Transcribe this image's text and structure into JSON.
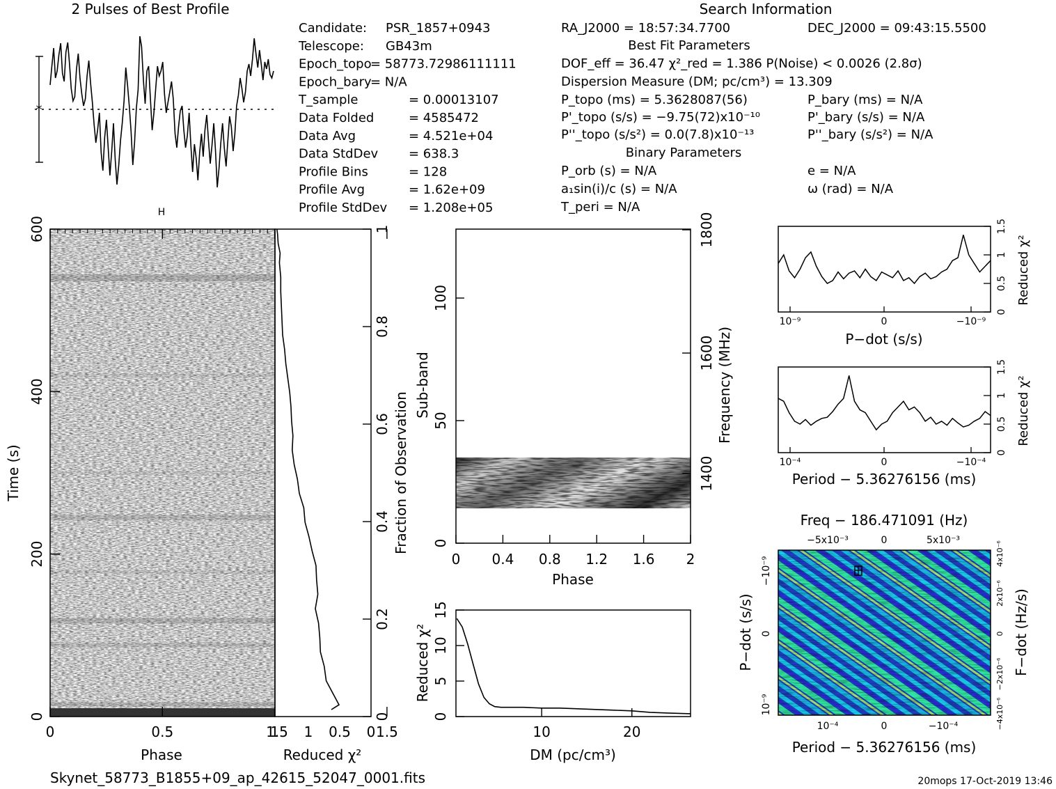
{
  "header": {
    "profile_title": "2 Pulses of Best Profile",
    "search_title": "Search Information",
    "fit_title": "Best Fit Parameters",
    "binary_title": "Binary Parameters"
  },
  "left_params": [
    {
      "label": "Candidate:",
      "value": "PSR_1857+0943"
    },
    {
      "label": "Telescope:",
      "value": "GB43m"
    },
    {
      "label": "Epoch_topo",
      "value": "= 58773.72986111111"
    },
    {
      "label": "Epoch_bary",
      "value": "= N/A"
    },
    {
      "label": "T_sample",
      "value": "=  0.00013107"
    },
    {
      "label": "Data Folded",
      "value": "=  4585472"
    },
    {
      "label": "Data Avg",
      "value": "=  4.521e+04"
    },
    {
      "label": "Data StdDev",
      "value": "=  638.3"
    },
    {
      "label": "Profile Bins",
      "value": "=  128"
    },
    {
      "label": "Profile Avg",
      "value": "=  1.62e+09"
    },
    {
      "label": "Profile StdDev",
      "value": "=  1.208e+05"
    }
  ],
  "search_info": {
    "ra": "RA_J2000 = 18:57:34.7700",
    "dec": "DEC_J2000 = 09:43:15.5500",
    "dof": "DOF_eff = 36.47  χ²_red = 1.386  P(Noise) < 0.0026  (2.8σ)",
    "dm": "Dispersion Measure (DM; pc/cm³) = 13.309",
    "p_topo": "P_topo (ms) =  5.3628087(56)",
    "p_bary": "P_bary (ms) = N/A",
    "pd_topo": "P'_topo (s/s) = −9.75(72)x10⁻¹⁰",
    "pd_bary": "P'_bary (s/s) = N/A",
    "pdd_topo": "P''_topo (s/s²) = 0.0(7.8)x10⁻¹³",
    "pdd_bary": "P''_bary (s/s²) = N/A",
    "p_orb": "P_orb (s) = N/A",
    "e": "e = N/A",
    "a1": "a₁sin(i)/c (s) = N/A",
    "omega": "ω (rad) = N/A",
    "t_peri": "T_peri = N/A"
  },
  "footer": {
    "filename": "Skynet_58773_B1855+09_ap_42615_52047_0001.fits",
    "stamp": "20mops 17-Oct-2019 13:46"
  },
  "colors": {
    "ink": "#000000",
    "grey_band": "#9a9a9a",
    "ppdot_low": "#1a1a9e",
    "ppdot_mid": "#12c8e6",
    "ppdot_high": "#34e98a"
  },
  "chart_data": [
    {
      "id": "profile",
      "type": "line",
      "title": "2 Pulses of Best Profile",
      "xlim": [
        0,
        2
      ],
      "values": [
        0.35,
        0.62,
        0.88,
        0.45,
        0.55,
        0.78,
        0.95,
        0.52,
        0.4,
        0.82,
        0.96,
        0.66,
        0.3,
        0.12,
        0.18,
        0.58,
        0.8,
        0.44,
        0.22,
        0.05,
        0.15,
        0.48,
        0.7,
        0.38,
        0.1,
        -0.22,
        -0.48,
        -0.3,
        -0.05,
        -0.62,
        -0.88,
        -0.4,
        -0.15,
        -0.55,
        -0.95,
        -0.6,
        -0.2,
        -0.72,
        -1.08,
        -0.8,
        -0.45,
        -0.2,
        0.12,
        0.6,
        0.35,
        0.05,
        -0.32,
        -0.8,
        -0.48,
        0.02,
        0.28,
        1.05,
        0.9,
        0.42,
        0.08,
        0.55,
        0.62,
        0.15,
        -0.3,
        -0.05,
        0.3,
        0.62,
        0.48,
        0.55,
        0.68,
        0.22,
        -0.05,
        0.1,
        0.25,
        0.4,
        0.15,
        -0.35,
        -0.55,
        -0.25,
        -0.02,
        0.05,
        -0.3,
        -0.55,
        -0.38,
        -0.05,
        -0.52,
        -0.9,
        -0.5,
        -0.7,
        -1.02,
        -0.62,
        -0.35,
        -0.68,
        -0.3,
        -0.08,
        -0.45,
        -0.78,
        -0.52,
        -0.2,
        -0.6,
        -1.12,
        -0.85,
        -0.48,
        -0.2,
        -0.55,
        -0.82,
        -0.45,
        -0.1,
        -0.25,
        -0.6,
        -0.35,
        0.05,
        0.2,
        0.45,
        0.3,
        0.1,
        0.25,
        0.55,
        0.65,
        0.48,
        0.72,
        1.02,
        0.8,
        0.6,
        0.85,
        0.65,
        0.42,
        0.68,
        0.58,
        0.72,
        0.5,
        0.45,
        0.55
      ],
      "ylim": [
        -1.2,
        1.2
      ]
    },
    {
      "id": "time_phase",
      "type": "heatmap",
      "xlabel": "Phase",
      "ylabel": "Time (s)",
      "xlim": [
        0,
        1.5
      ],
      "ylim": [
        0,
        600
      ],
      "x_ticks": [
        "0",
        "0.5",
        "1",
        "1.5"
      ],
      "y_ticks": [
        "0",
        "200",
        "400",
        "600"
      ]
    },
    {
      "id": "time_chi2",
      "type": "line",
      "xlabel": "Reduced χ²",
      "ylabel": "Fraction of Observation",
      "x_ticks": [
        "1.5",
        "1",
        "0.5",
        "0"
      ],
      "y_ticks": [
        "0",
        "0.2",
        "0.4",
        "0.6",
        "0.8",
        "1"
      ],
      "xlim": [
        1.5,
        0
      ],
      "ylim": [
        0,
        1
      ],
      "frac": [
        0.0,
        0.01,
        0.03,
        0.06,
        0.09,
        0.12,
        0.15,
        0.18,
        0.21,
        0.24,
        0.27,
        0.3,
        0.33,
        0.36,
        0.39,
        0.42,
        0.45,
        0.48,
        0.51,
        0.54,
        0.57,
        0.6,
        0.63,
        0.66,
        0.69,
        0.72,
        0.75,
        0.78,
        0.81,
        0.84,
        0.87,
        0.9,
        0.93,
        0.95,
        0.97,
        0.99,
        1.0
      ],
      "chi2": [
        0.62,
        0.5,
        0.58,
        0.7,
        0.73,
        0.79,
        0.8,
        0.82,
        0.87,
        0.83,
        0.85,
        0.86,
        0.92,
        0.97,
        1.03,
        1.05,
        1.12,
        1.15,
        1.2,
        1.23,
        1.22,
        1.24,
        1.25,
        1.27,
        1.3,
        1.33,
        1.35,
        1.38,
        1.39,
        1.4,
        1.41,
        1.41,
        1.43,
        1.42,
        1.45,
        1.46,
        1.47
      ]
    },
    {
      "id": "subband",
      "type": "heatmap",
      "xlabel": "Phase",
      "ylabel": "Sub-band",
      "y2label": "Frequency (MHz)",
      "xlim": [
        0,
        2
      ],
      "ylim": [
        0,
        128
      ],
      "x_ticks": [
        "0",
        "0.4",
        "0.8",
        "1.2",
        "1.6",
        "2"
      ],
      "y_ticks": [
        "0",
        "50",
        "100"
      ],
      "y2_ticks": [
        "1400",
        "1600",
        "1800"
      ],
      "band_range": [
        14,
        35
      ]
    },
    {
      "id": "dm_chi2",
      "type": "line",
      "xlabel": "DM (pc/cm³)",
      "ylabel": "Reduced χ²",
      "xlim": [
        0.5,
        26.5
      ],
      "ylim": [
        0,
        15
      ],
      "x_ticks": [
        "10",
        "20"
      ],
      "y_ticks": [
        "0",
        "5",
        "10",
        "15"
      ],
      "x": [
        0.6,
        1.2,
        1.8,
        2.4,
        3.0,
        3.6,
        4.2,
        4.8,
        5.5,
        6.5,
        8,
        10,
        12,
        14,
        16,
        18,
        20,
        22,
        24,
        26.5
      ],
      "y": [
        13.8,
        12.6,
        10.2,
        7.4,
        4.6,
        2.7,
        1.8,
        1.4,
        1.3,
        1.3,
        1.3,
        1.2,
        1.2,
        1.1,
        1.0,
        0.9,
        0.8,
        0.6,
        0.5,
        0.4
      ]
    },
    {
      "id": "pdot_chi2",
      "type": "line",
      "xlabel": "P−dot (s/s)",
      "ylabel": "Reduced χ²",
      "ylim": [
        0,
        1.5
      ],
      "x_ticks": [
        "10⁻⁹",
        "0",
        "−10⁻⁹"
      ],
      "y_ticks": [
        "0",
        "0.5",
        "1",
        "1.5"
      ],
      "y": [
        0.85,
        1.0,
        0.72,
        0.6,
        0.75,
        0.95,
        1.05,
        0.8,
        0.62,
        0.5,
        0.55,
        0.7,
        0.58,
        0.68,
        0.72,
        0.6,
        0.75,
        0.62,
        0.55,
        0.7,
        0.65,
        0.6,
        0.72,
        0.55,
        0.6,
        0.5,
        0.62,
        0.68,
        0.58,
        0.62,
        0.7,
        0.75,
        0.9,
        0.95,
        1.35,
        1.0,
        0.85,
        0.7,
        0.8,
        0.9
      ]
    },
    {
      "id": "period_chi2",
      "type": "line",
      "xlabel": "Period − 5.36276156 (ms)",
      "ylabel": "Reduced χ²",
      "ylim": [
        0,
        1.5
      ],
      "x_ticks": [
        "10⁻⁴",
        "0",
        "−10⁻⁴"
      ],
      "y_ticks": [
        "0",
        "0.5",
        "1",
        "1.5"
      ],
      "y": [
        0.95,
        0.9,
        0.7,
        0.55,
        0.5,
        0.58,
        0.48,
        0.55,
        0.6,
        0.62,
        0.72,
        0.85,
        0.95,
        1.35,
        0.9,
        0.75,
        0.7,
        0.55,
        0.4,
        0.5,
        0.55,
        0.7,
        0.8,
        0.9,
        0.75,
        0.8,
        0.7,
        0.55,
        0.62,
        0.5,
        0.55,
        0.48,
        0.6,
        0.52,
        0.45,
        0.48,
        0.55,
        0.6,
        0.72,
        0.65
      ]
    },
    {
      "id": "ppdot",
      "type": "heatmap",
      "title": "Freq − 186.471091 (Hz)",
      "xlabel": "Period − 5.36276156 (ms)",
      "ylabel": "P−dot (s/s)",
      "y2label": "F−dot (Hz/s)",
      "x_ticks": [
        "10⁻⁴",
        "0",
        "−10⁻⁴"
      ],
      "x2_ticks": [
        "−5x10⁻³",
        "0",
        "5x10⁻³"
      ],
      "y_ticks": [
        "10⁻⁹",
        "0",
        "−10⁻⁹"
      ],
      "y2_ticks": [
        "−4x10⁻⁶",
        "−2x10⁻⁶",
        "0",
        "2x10⁻⁶",
        "4x10⁻⁶"
      ]
    }
  ]
}
